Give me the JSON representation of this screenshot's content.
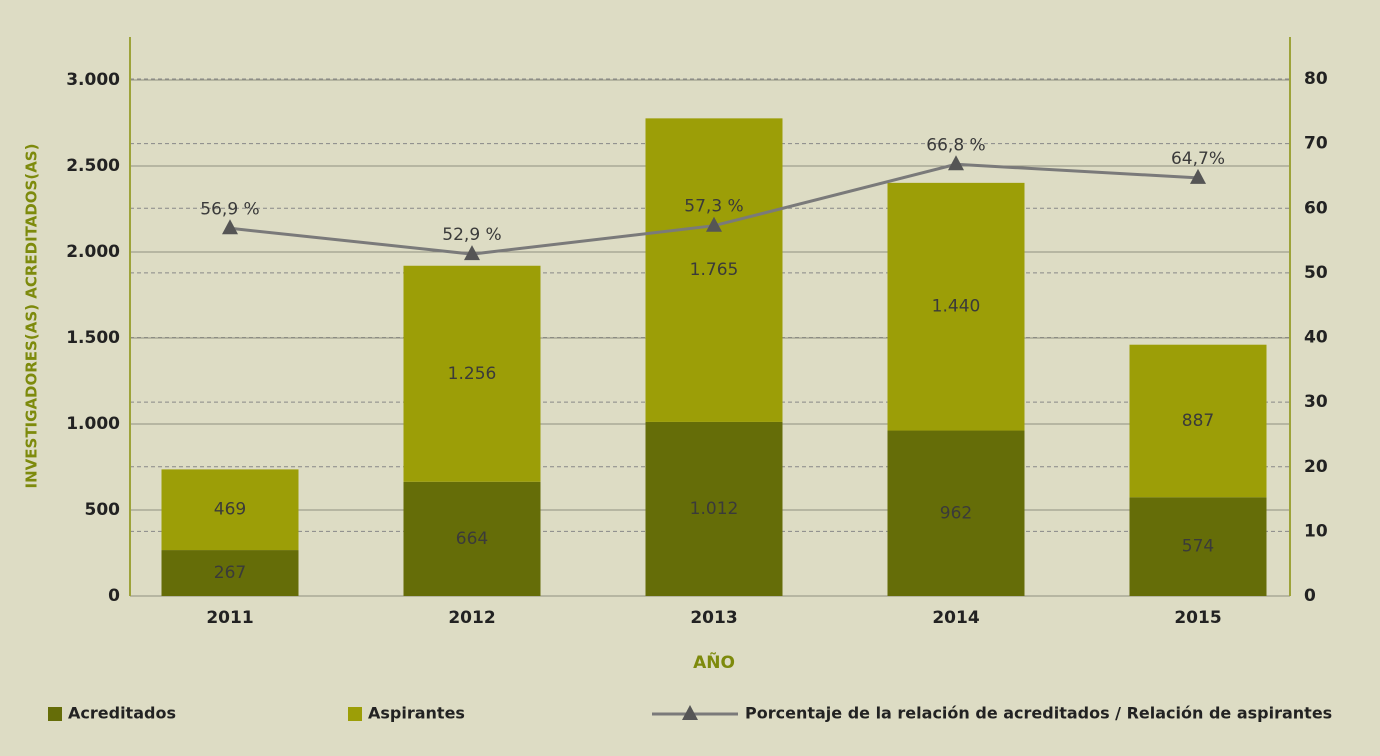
{
  "chart_data": {
    "type": "bar",
    "y_axis_label": "INVESTIGADORES(AS) ACREDITADOS(AS)",
    "x_axis_label": "AÑO",
    "categories": [
      "2011",
      "2012",
      "2013",
      "2014",
      "2015"
    ],
    "series": [
      {
        "name": "Acreditados",
        "color": "#656d08",
        "values": [
          267,
          664,
          1012,
          962,
          574
        ],
        "value_labels": [
          "267",
          "664",
          "1.012",
          "962",
          "574"
        ]
      },
      {
        "name": "Aspirantes",
        "color": "#9c9e07",
        "values": [
          469,
          1256,
          1765,
          1440,
          887
        ],
        "value_labels": [
          "469",
          "1.256",
          "1.765",
          "1.440",
          "887"
        ]
      },
      {
        "name": "Porcentaje de la relación de acreditados / Relación de aspirantes",
        "type": "line",
        "axis": "y2",
        "color": "#7a7a7a",
        "marker_color": "#555555",
        "values": [
          56.9,
          52.9,
          57.3,
          66.8,
          64.7
        ],
        "value_labels": [
          "56,9 %",
          "52,9 %",
          "57,3 %",
          "66,8 %",
          "64,7%"
        ]
      }
    ],
    "stacked": true,
    "ylim": [
      0,
      3250
    ],
    "yticks": [
      0,
      500,
      {
        "value": 1000,
        "label": "1.000"
      },
      {
        "value": 1500,
        "label": "1.500"
      },
      {
        "value": 2000,
        "label": "2.000"
      },
      {
        "value": 2500,
        "label": "2.500"
      },
      {
        "value": 3000,
        "label": "3.000"
      }
    ],
    "y2lim": [
      0,
      86.5
    ],
    "y2ticks": [
      0,
      10,
      20,
      30,
      40,
      50,
      60,
      70,
      80
    ],
    "grid": true,
    "legend": "bottom"
  }
}
